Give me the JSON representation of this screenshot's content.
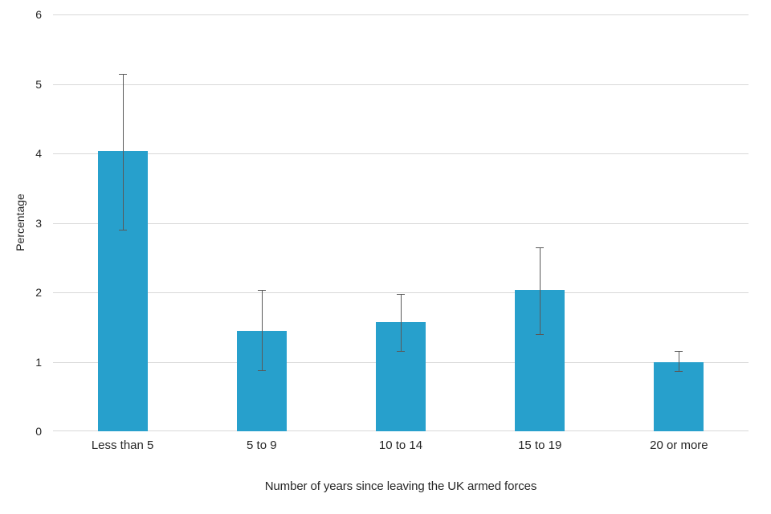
{
  "chart_data": {
    "type": "bar",
    "title": "",
    "categories": [
      "Less than 5",
      "5 to 9",
      "10 to 14",
      "15 to 19",
      "20 or more"
    ],
    "values": [
      4.03,
      1.45,
      1.57,
      2.03,
      1.0
    ],
    "error_bars": {
      "lower": [
        2.9,
        0.88,
        1.16,
        1.4,
        0.87
      ],
      "upper": [
        5.15,
        2.03,
        1.98,
        2.65,
        1.16
      ]
    },
    "xlabel": "Number of years since leaving the UK armed forces",
    "ylabel": "Percentage",
    "ylim": [
      0,
      6
    ],
    "yticks": [
      "0",
      "1",
      "2",
      "3",
      "4",
      "5",
      "6"
    ],
    "grid": "horizontal",
    "legend": "none",
    "colors": {
      "bar": "#27A0CC",
      "error_bar": "#595959",
      "gridline": "#D9D9D9",
      "axis_line": "#D9D9D9",
      "text": "#262626",
      "background": "#FFFFFF"
    }
  }
}
